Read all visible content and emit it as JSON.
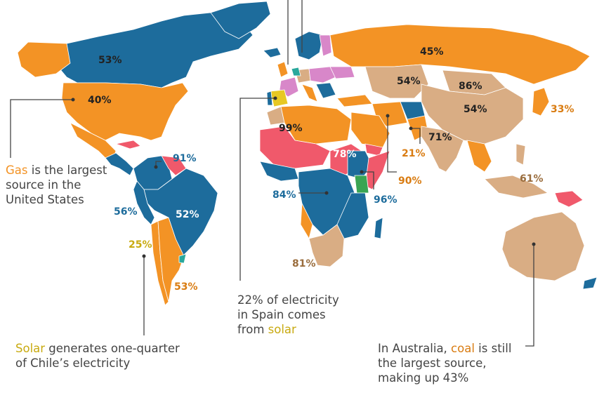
{
  "colors": {
    "gas": "#f39325",
    "coal": "#d9ad84",
    "hydro": "#1d6c9c",
    "solar": "#e7c823",
    "nuclear": "#d887c9",
    "oil": "#f0596b",
    "wind": "#2aa89c",
    "geothermal": "#3aa453",
    "label_dark": "#222222",
    "label_blue": "#1d6c9c",
    "label_orange": "#d97c12",
    "label_brown": "#9a6d3d",
    "label_yellow": "#c8aa10"
  },
  "value_labels": {
    "canada": "53%",
    "usa": "40%",
    "russia": "45%",
    "kazakhstan": "54%",
    "mongolia": "86%",
    "china": "54%",
    "japan": "33%",
    "india": "71%",
    "pakistan": "21%",
    "saudi": "90%",
    "indonesia": "61%",
    "algeria": "99%",
    "ethiopia": "78%",
    "congo": "84%",
    "kenya": "96%",
    "south_africa": "81%",
    "venezuela": "91%",
    "peru": "56%",
    "brazil": "52%",
    "chile": "25%",
    "argentina": "53%"
  },
  "annotations": {
    "usa": {
      "highlight": "Gas",
      "line1_rest": " is the largest",
      "line2": "source in the",
      "line3": "United States"
    },
    "chile": {
      "highlight": "Solar",
      "line1_rest": " generates one-quarter",
      "line2": "of Chile’s electricity"
    },
    "spain": {
      "line1": "22% of electricity",
      "line2": "in Spain comes",
      "line3_prefix": "from ",
      "highlight": "solar"
    },
    "australia": {
      "line1_prefix": "In Australia, ",
      "highlight": "coal",
      "line1_suffix": " is still",
      "line2": "the largest source,",
      "line3": "making up 43%"
    }
  }
}
